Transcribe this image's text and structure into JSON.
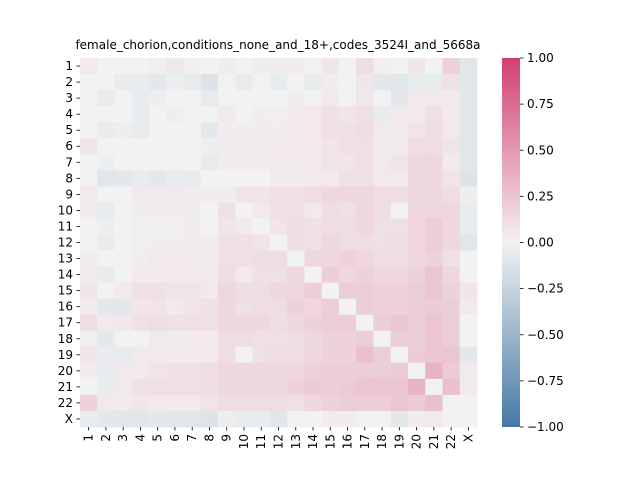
{
  "chart_data": {
    "type": "heatmap",
    "title": "female_chorion,conditions_none_and_18+,codes_3524I_and_5668a",
    "row_labels": [
      "1",
      "2",
      "3",
      "4",
      "5",
      "6",
      "7",
      "8",
      "9",
      "10",
      "11",
      "12",
      "13",
      "14",
      "15",
      "16",
      "17",
      "18",
      "19",
      "20",
      "21",
      "22",
      "X"
    ],
    "col_labels": [
      "1",
      "2",
      "3",
      "4",
      "5",
      "6",
      "7",
      "8",
      "9",
      "10",
      "11",
      "12",
      "13",
      "14",
      "15",
      "16",
      "17",
      "18",
      "19",
      "20",
      "21",
      "22",
      "X"
    ],
    "values": [
      [
        0.05,
        0.0,
        0.0,
        0.0,
        0.02,
        0.06,
        0.02,
        0.0,
        0.03,
        0.0,
        0.03,
        0.03,
        0.03,
        0.0,
        0.07,
        0.0,
        0.12,
        0.02,
        0.0,
        0.07,
        0.0,
        0.18,
        -0.1
      ],
      [
        0.0,
        0.0,
        -0.05,
        -0.05,
        -0.08,
        -0.03,
        -0.06,
        -0.12,
        0.0,
        -0.06,
        0.0,
        -0.05,
        0.0,
        -0.05,
        0.03,
        0.0,
        0.07,
        -0.08,
        -0.1,
        -0.05,
        -0.05,
        0.1,
        -0.1
      ],
      [
        0.0,
        -0.05,
        0.0,
        -0.05,
        -0.03,
        0.0,
        0.0,
        -0.06,
        0.0,
        0.0,
        0.0,
        0.0,
        0.03,
        0.0,
        0.05,
        0.0,
        0.06,
        0.0,
        -0.08,
        0.05,
        0.05,
        0.05,
        -0.1
      ],
      [
        0.0,
        0.0,
        0.0,
        -0.05,
        0.0,
        -0.03,
        0.0,
        0.0,
        0.05,
        0.0,
        0.03,
        0.02,
        0.05,
        0.05,
        0.1,
        0.07,
        0.1,
        -0.05,
        0.05,
        0.05,
        0.1,
        0.05,
        -0.1
      ],
      [
        0.0,
        -0.05,
        -0.03,
        -0.06,
        0.0,
        0.0,
        0.0,
        -0.08,
        0.03,
        0.03,
        0.03,
        0.03,
        0.05,
        0.05,
        0.1,
        0.1,
        0.12,
        0.05,
        0.03,
        0.08,
        0.12,
        0.05,
        -0.1
      ],
      [
        0.07,
        0.0,
        0.0,
        0.0,
        0.0,
        0.0,
        0.0,
        -0.03,
        0.03,
        0.03,
        0.03,
        0.05,
        0.05,
        0.05,
        0.08,
        0.1,
        0.1,
        0.03,
        0.05,
        0.12,
        0.12,
        0.08,
        -0.1
      ],
      [
        0.0,
        -0.03,
        0.0,
        0.0,
        0.0,
        0.0,
        0.0,
        -0.06,
        0.03,
        0.03,
        0.03,
        0.05,
        0.05,
        0.05,
        0.08,
        0.08,
        0.1,
        0.05,
        0.08,
        0.15,
        0.15,
        0.05,
        -0.1
      ],
      [
        0.0,
        -0.1,
        -0.08,
        -0.05,
        -0.08,
        -0.05,
        -0.06,
        0.0,
        0.0,
        0.0,
        0.0,
        0.03,
        0.03,
        0.05,
        0.05,
        0.1,
        0.1,
        0.05,
        0.05,
        0.15,
        0.15,
        0.08,
        -0.12
      ],
      [
        0.05,
        0.0,
        0.0,
        0.05,
        0.05,
        0.05,
        0.03,
        0.03,
        0.03,
        0.08,
        0.08,
        0.1,
        0.1,
        0.12,
        0.15,
        0.15,
        0.15,
        0.12,
        0.12,
        0.15,
        0.15,
        0.12,
        -0.03
      ],
      [
        0.03,
        -0.05,
        0.0,
        0.03,
        0.03,
        0.03,
        0.03,
        0.0,
        0.1,
        0.0,
        0.05,
        0.1,
        0.1,
        0.05,
        0.12,
        0.1,
        0.15,
        0.12,
        0.0,
        0.15,
        0.15,
        0.15,
        -0.05
      ],
      [
        0.0,
        -0.03,
        0.0,
        0.02,
        0.02,
        0.02,
        0.03,
        0.0,
        0.08,
        0.05,
        0.0,
        0.08,
        0.12,
        0.1,
        0.12,
        0.12,
        0.15,
        0.1,
        0.1,
        0.15,
        0.2,
        0.15,
        -0.05
      ],
      [
        0.0,
        -0.05,
        0.0,
        0.02,
        0.03,
        0.03,
        0.05,
        0.03,
        0.1,
        0.1,
        0.08,
        0.0,
        0.12,
        0.1,
        0.15,
        0.12,
        0.12,
        0.1,
        0.12,
        0.15,
        0.2,
        0.15,
        -0.1
      ],
      [
        0.03,
        0.0,
        0.0,
        0.03,
        0.05,
        0.05,
        0.05,
        0.03,
        0.1,
        0.1,
        0.12,
        0.12,
        0.0,
        0.15,
        0.15,
        0.18,
        0.15,
        0.12,
        0.12,
        0.15,
        0.18,
        0.1,
        0.0
      ],
      [
        0.03,
        -0.05,
        0.0,
        0.05,
        0.05,
        0.05,
        0.05,
        0.05,
        0.12,
        0.05,
        0.1,
        0.1,
        0.15,
        0.0,
        0.2,
        0.15,
        0.18,
        0.15,
        0.15,
        0.18,
        0.25,
        0.15,
        0.0
      ],
      [
        0.07,
        0.0,
        0.05,
        0.1,
        0.1,
        0.08,
        0.08,
        0.05,
        0.15,
        0.12,
        0.12,
        0.15,
        0.15,
        0.2,
        0.0,
        0.2,
        0.2,
        0.18,
        0.18,
        0.2,
        0.25,
        0.18,
        0.07
      ],
      [
        0.03,
        -0.08,
        -0.08,
        0.07,
        0.08,
        0.05,
        0.08,
        0.1,
        0.15,
        0.1,
        0.12,
        0.12,
        0.18,
        0.15,
        0.2,
        0.0,
        0.2,
        0.18,
        0.18,
        0.2,
        0.22,
        0.2,
        0.05
      ],
      [
        0.12,
        0.05,
        0.06,
        0.1,
        0.12,
        0.1,
        0.1,
        0.1,
        0.15,
        0.15,
        0.15,
        0.12,
        0.15,
        0.18,
        0.2,
        0.2,
        0.0,
        0.2,
        0.25,
        0.2,
        0.25,
        0.2,
        0.0
      ],
      [
        0.02,
        -0.08,
        0.0,
        0.0,
        0.05,
        0.03,
        0.05,
        0.05,
        0.12,
        0.12,
        0.1,
        0.1,
        0.12,
        0.15,
        0.18,
        0.18,
        0.2,
        0.0,
        0.2,
        0.2,
        0.25,
        0.2,
        0.0
      ],
      [
        0.07,
        -0.05,
        -0.06,
        0.05,
        0.05,
        0.05,
        0.05,
        0.05,
        0.12,
        0.0,
        0.1,
        0.12,
        0.12,
        0.15,
        0.18,
        0.18,
        0.28,
        0.2,
        0.0,
        0.22,
        0.25,
        0.25,
        -0.08
      ],
      [
        0.03,
        -0.05,
        0.05,
        0.05,
        0.08,
        0.1,
        0.1,
        0.12,
        0.15,
        0.15,
        0.15,
        0.15,
        0.15,
        0.18,
        0.2,
        0.2,
        0.2,
        0.2,
        0.22,
        0.0,
        0.35,
        0.22,
        0.05
      ],
      [
        0.0,
        -0.05,
        0.05,
        0.1,
        0.1,
        0.1,
        0.1,
        0.12,
        0.15,
        0.15,
        0.15,
        0.15,
        0.18,
        0.22,
        0.2,
        0.22,
        0.25,
        0.25,
        0.25,
        0.35,
        0.0,
        0.28,
        0.05
      ],
      [
        0.18,
        0.05,
        0.05,
        0.07,
        0.05,
        0.05,
        0.05,
        0.08,
        0.12,
        0.12,
        0.12,
        0.12,
        0.1,
        0.15,
        0.18,
        0.2,
        0.2,
        0.2,
        0.25,
        0.22,
        0.28,
        0.0,
        0.0
      ],
      [
        -0.05,
        -0.08,
        -0.1,
        -0.1,
        -0.08,
        -0.1,
        -0.1,
        -0.12,
        -0.03,
        -0.05,
        -0.05,
        -0.1,
        0.0,
        0.0,
        0.03,
        0.03,
        0.0,
        0.0,
        -0.08,
        0.03,
        0.05,
        0.0,
        0.0
      ]
    ],
    "vmin": -1.0,
    "vmax": 1.0,
    "colorbar_ticks": [
      -1.0,
      -0.75,
      -0.5,
      -0.25,
      0.0,
      0.25,
      0.5,
      0.75,
      1.0
    ],
    "colorbar_tick_labels": [
      "−1.00",
      "−0.75",
      "−0.50",
      "−0.25",
      "0.00",
      "0.25",
      "0.50",
      "0.75",
      "1.00"
    ],
    "colormap": {
      "low": "#4479a5",
      "mid": "#f2f2f2",
      "high": "#d43f6e"
    },
    "colorbar_location": "right",
    "grid": false
  }
}
